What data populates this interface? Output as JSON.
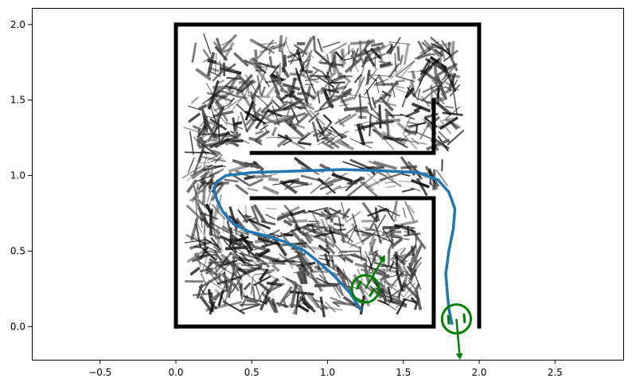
{
  "chart_data": {
    "type": "line",
    "title": "",
    "xlabel": "",
    "ylabel": "",
    "xlim": [
      -0.95,
      2.95
    ],
    "ylim": [
      -0.22,
      2.11
    ],
    "xticks": [
      -0.5,
      0.0,
      0.5,
      1.0,
      1.5,
      2.0,
      2.5
    ],
    "yticks": [
      0.0,
      0.5,
      1.0,
      1.5,
      2.0
    ],
    "xtick_labels": [
      "−0.5",
      "0.0",
      "0.5",
      "1.0",
      "1.5",
      "2.0",
      "2.5"
    ],
    "ytick_labels": [
      "0.0",
      "0.5",
      "1.0",
      "1.5",
      "2.0"
    ],
    "grid": false,
    "colors": {
      "walls": "#000000",
      "trajectory": "#1f77b4",
      "robot": "#008000",
      "field": "#000000"
    },
    "walls": [
      {
        "name": "outer-left",
        "points": [
          [
            0,
            0
          ],
          [
            0,
            2.0
          ]
        ]
      },
      {
        "name": "outer-top",
        "points": [
          [
            0,
            2.0
          ],
          [
            2.0,
            2.0
          ]
        ]
      },
      {
        "name": "outer-right",
        "points": [
          [
            2.0,
            2.0
          ],
          [
            2.0,
            0
          ]
        ]
      },
      {
        "name": "outer-bottom",
        "points": [
          [
            0,
            0
          ],
          [
            1.7,
            0
          ],
          [
            1.7,
            0.85
          ],
          [
            0.5,
            0.85
          ]
        ]
      },
      {
        "name": "inner-upper",
        "points": [
          [
            0.5,
            1.15
          ],
          [
            1.7,
            1.15
          ],
          [
            1.7,
            1.5
          ]
        ]
      }
    ],
    "trajectory": [
      [
        1.22,
        0.11
      ],
      [
        1.15,
        0.22
      ],
      [
        1.05,
        0.33
      ],
      [
        0.95,
        0.42
      ],
      [
        0.85,
        0.5
      ],
      [
        0.72,
        0.56
      ],
      [
        0.6,
        0.6
      ],
      [
        0.48,
        0.63
      ],
      [
        0.38,
        0.68
      ],
      [
        0.31,
        0.76
      ],
      [
        0.27,
        0.84
      ],
      [
        0.25,
        0.91
      ],
      [
        0.27,
        0.96
      ],
      [
        0.33,
        1.0
      ],
      [
        0.5,
        1.02
      ],
      [
        0.8,
        1.03
      ],
      [
        1.1,
        1.04
      ],
      [
        1.4,
        1.03
      ],
      [
        1.6,
        1.02
      ],
      [
        1.73,
        0.97
      ],
      [
        1.8,
        0.89
      ],
      [
        1.84,
        0.78
      ],
      [
        1.83,
        0.65
      ],
      [
        1.8,
        0.5
      ],
      [
        1.78,
        0.35
      ],
      [
        1.79,
        0.22
      ],
      [
        1.8,
        0.12
      ],
      [
        1.82,
        0.02
      ]
    ],
    "robots": [
      {
        "name": "robot-start",
        "center": [
          1.25,
          0.25
        ],
        "radius": 0.09,
        "heading_deg": 60
      },
      {
        "name": "robot-goal",
        "center": [
          1.85,
          0.05
        ],
        "radius": 0.095,
        "heading_deg": -85
      }
    ],
    "vector_field": {
      "regions": [
        {
          "name": "upper-region",
          "x": [
            0.12,
            1.85
          ],
          "y": [
            1.2,
            1.88
          ],
          "seed": 11,
          "count": 520
        },
        {
          "name": "lower-region",
          "x": [
            0.12,
            1.6
          ],
          "y": [
            0.12,
            0.78
          ],
          "seed": 23,
          "count": 520
        },
        {
          "name": "corridor",
          "x": [
            0.15,
            1.8
          ],
          "y": [
            0.9,
            1.08
          ],
          "seed": 37,
          "count": 90
        },
        {
          "name": "left-strip",
          "x": [
            0.1,
            0.3
          ],
          "y": [
            0.8,
            1.3
          ],
          "seed": 51,
          "count": 60
        }
      ]
    }
  }
}
